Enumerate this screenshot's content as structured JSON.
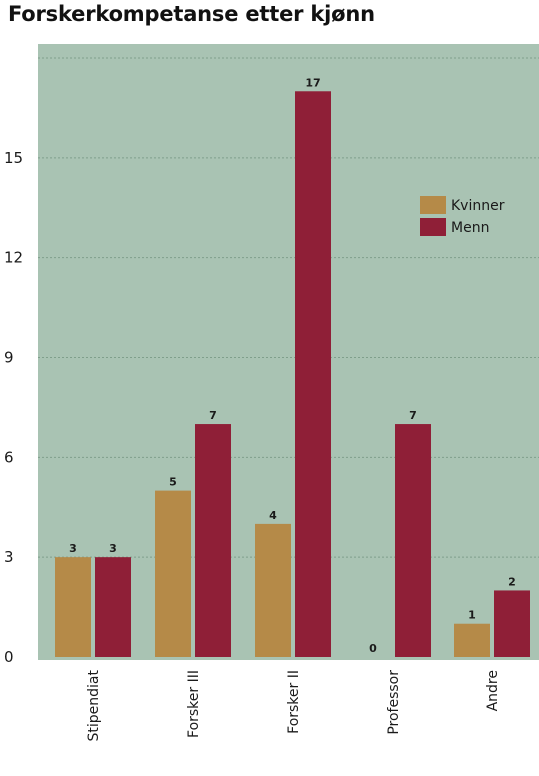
{
  "chart_data": {
    "type": "bar",
    "title": "Forskerkompetanse etter kjønn",
    "xlabel": "",
    "ylabel": "",
    "categories": [
      "Stipendiat",
      "Forsker III",
      "Forsker II",
      "Professor",
      "Andre"
    ],
    "series": [
      {
        "name": "Kvinner",
        "values": [
          3,
          5,
          4,
          0,
          1
        ],
        "color": "#b58a48"
      },
      {
        "name": "Menn",
        "values": [
          3,
          7,
          17,
          7,
          2
        ],
        "color": "#8f1f37"
      }
    ],
    "ylim": [
      0,
      18
    ],
    "yticks": [
      0,
      3,
      6,
      9,
      12,
      15
    ],
    "grid": true,
    "legend_position": "right",
    "plot_background": "#a9c3b3",
    "grid_color": "#7f9f8b"
  }
}
